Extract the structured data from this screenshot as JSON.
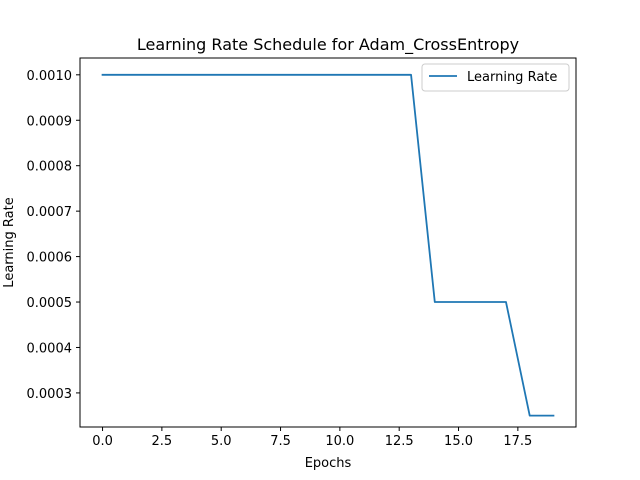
{
  "chart_data": {
    "type": "line",
    "title": "Learning Rate Schedule for Adam_CrossEntropy",
    "xlabel": "Epochs",
    "ylabel": "Learning Rate",
    "xlim": [
      -0.95,
      19.95
    ],
    "ylim": [
      0.000225,
      0.001037
    ],
    "x_ticks": [
      0,
      2.5,
      5,
      7.5,
      10,
      12.5,
      15,
      17.5
    ],
    "x_tick_labels": [
      "0.0",
      "2.5",
      "5.0",
      "7.5",
      "10.0",
      "12.5",
      "15.0",
      "17.5"
    ],
    "y_ticks": [
      0.0003,
      0.0004,
      0.0005,
      0.0006,
      0.0007,
      0.0008,
      0.0009,
      0.001
    ],
    "y_tick_labels": [
      "0.0003",
      "0.0004",
      "0.0005",
      "0.0006",
      "0.0007",
      "0.0008",
      "0.0009",
      "0.0010"
    ],
    "grid": false,
    "legend_position": "top-right",
    "x": [
      0,
      1,
      2,
      3,
      4,
      5,
      6,
      7,
      8,
      9,
      10,
      11,
      12,
      13,
      14,
      15,
      16,
      17,
      18,
      19
    ],
    "series": [
      {
        "name": "Learning Rate",
        "color": "#1f77b4",
        "values": [
          0.001,
          0.001,
          0.001,
          0.001,
          0.001,
          0.001,
          0.001,
          0.001,
          0.001,
          0.001,
          0.001,
          0.001,
          0.001,
          0.001,
          0.0005,
          0.0005,
          0.0005,
          0.0005,
          0.00025,
          0.00025
        ]
      }
    ]
  }
}
